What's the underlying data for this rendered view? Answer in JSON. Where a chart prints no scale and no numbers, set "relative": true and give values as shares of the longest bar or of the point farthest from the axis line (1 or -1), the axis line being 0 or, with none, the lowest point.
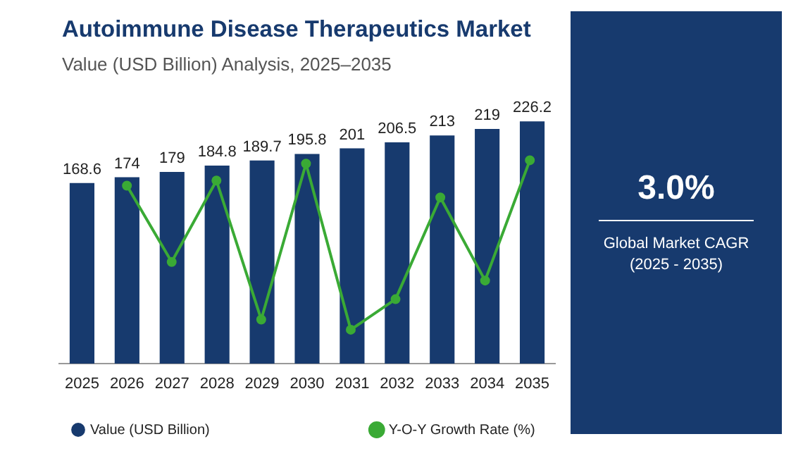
{
  "chart_data": [
    {
      "type": "bar",
      "title": "Autoimmune Disease Therapeutics Market",
      "subtitle": "Value (USD Billion) Analysis, 2025–2035",
      "categories": [
        "2025",
        "2026",
        "2027",
        "2028",
        "2029",
        "2030",
        "2031",
        "2032",
        "2033",
        "2034",
        "2035"
      ],
      "series": [
        {
          "name": "Value (USD Billion)",
          "color": "#173a6e",
          "values": [
            168.6,
            174,
            179,
            184.8,
            189.7,
            195.8,
            201,
            206.5,
            213,
            219,
            226.2
          ],
          "value_labels": [
            "168.6",
            "174",
            "179",
            "184.8",
            "189.7",
            "195.8",
            "201",
            "206.5",
            "213",
            "219",
            "226.2"
          ]
        }
      ],
      "legend": "bottom",
      "grid": false,
      "tick_labels": "x"
    },
    {
      "type": "line",
      "relative": true,
      "categories": [
        null,
        null,
        null,
        null,
        null,
        null,
        null,
        null,
        null,
        null
      ],
      "series": [
        {
          "name": "Y-O-Y Growth Rate (%)",
          "marker": "circle",
          "color": "#3aaa35",
          "values": [
            0.85,
            0.4,
            0.88,
            0.06,
            0.98,
            0,
            0.18,
            0.78,
            0.29,
            1
          ]
        }
      ],
      "legend": "bottom",
      "grid": false,
      "tick_labels": false
    },
    {
      "type": "other",
      "title": "3.0%",
      "subtitle": "Global Market CAGR (2025 - 2035)"
    }
  ]
}
